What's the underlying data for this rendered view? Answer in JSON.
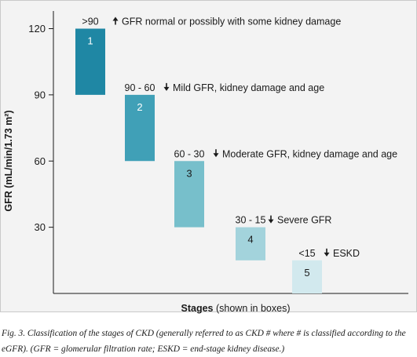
{
  "chart_data": {
    "type": "bar",
    "series": [
      {
        "values": [
          {
            "stage": "1",
            "range_label": ">90",
            "low": 90,
            "high": 120,
            "direction": "up",
            "description": "GFR normal or possibly with some kidney damage",
            "color": "#1f87a4",
            "number_color": "#ffffff"
          },
          {
            "stage": "2",
            "range_label": "90 - 60",
            "low": 60,
            "high": 90,
            "direction": "down",
            "description": "Mild GFR, kidney damage and age",
            "color": "#40a0b7",
            "number_color": "#ffffff"
          },
          {
            "stage": "3",
            "range_label": "60 - 30",
            "low": 30,
            "high": 60,
            "direction": "down",
            "description": "Moderate GFR, kidney damage and age",
            "color": "#77bfcb",
            "number_color": "#1a1a1a"
          },
          {
            "stage": "4",
            "range_label": "30 - 15",
            "low": 15,
            "high": 30,
            "direction": "down",
            "description": "Severe GFR",
            "color": "#a3d3dc",
            "number_color": "#1a1a1a"
          },
          {
            "stage": "5",
            "range_label": "<15",
            "low": 0,
            "high": 15,
            "direction": "down",
            "description": "ESKD",
            "color": "#d2e9ee",
            "number_color": "#1a1a1a"
          }
        ]
      }
    ],
    "ylabel": "GFR (mL/min/1.73 m²)",
    "xlabel_bold": "Stages",
    "xlabel_rest": " (shown in boxes)",
    "yticks": [
      30,
      60,
      90,
      120
    ],
    "ylim": [
      0,
      128
    ],
    "grid": false,
    "legend": "none"
  },
  "caption": "Fig. 3. Classification of the stages of CKD (generally referred to as CKD # where # is classified according to the eGFR). (GFR = glomerular filtration rate; ESKD = end-stage kidney disease.)"
}
